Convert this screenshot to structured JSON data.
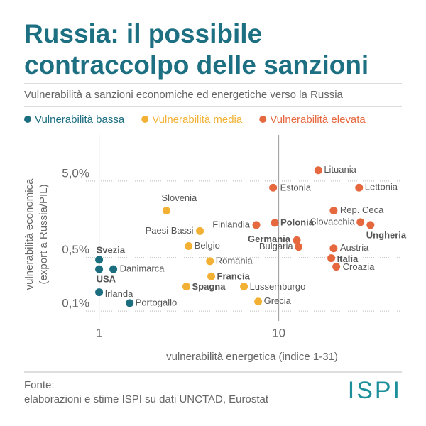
{
  "chart_data": {
    "type": "scatter",
    "title_lines": [
      "Russia: il possibile",
      "contraccolpo delle sanzioni"
    ],
    "subtitle": "Vulnerabilità a sanzioni economiche ed energetiche verso la Russia",
    "x_label": "vulnerabilità energetica (indice 1-31)",
    "y_label_lines": [
      "vulnerabilità economica",
      "(export a Russia/PIL)"
    ],
    "source_lines": [
      "Fonte:",
      "elaborazioni e stime ISPI su dati UNCTAD, Eurostat"
    ],
    "logo": "ISPI",
    "x_log": true,
    "y_log": true,
    "grid": true,
    "xlim": [
      0.73,
      48
    ],
    "ylim": [
      0.06,
      20
    ],
    "xticks": [
      1,
      10
    ],
    "yticks": [
      {
        "value": 0.1,
        "label": "0,1%"
      },
      {
        "value": 0.5,
        "label": "0,5%"
      },
      {
        "value": 5,
        "label": "5,0%"
      }
    ],
    "series": [
      {
        "name": "Vulnerabilità bassa",
        "color": "#1b6d80",
        "labels": [
          "Svezia",
          "USA",
          "Danimarca",
          "Irlanda",
          "Portogallo"
        ],
        "bold": [
          true,
          true,
          false,
          false,
          false
        ],
        "x": [
          1,
          1,
          1.2,
          1,
          1.48
        ],
        "values": [
          0.468,
          0.352,
          0.352,
          0.176,
          0.127
        ]
      },
      {
        "name": "Vulnerabilità media",
        "color": "#f2b134",
        "labels": [
          "Slovenia",
          "Paesi Bassi",
          "Belgio",
          "Romania",
          "Francia",
          "Spagna",
          "Lussemburgo",
          "Grecia"
        ],
        "bold": [
          false,
          false,
          false,
          false,
          true,
          true,
          false,
          false
        ],
        "x": [
          2.37,
          3.64,
          3.15,
          4.14,
          4.21,
          3.06,
          6.4,
          7.68
        ],
        "values": [
          2.05,
          1.11,
          0.707,
          0.448,
          0.284,
          0.209,
          0.209,
          0.133
        ]
      },
      {
        "name": "Vulnerabilità elevata",
        "color": "#e5683e",
        "labels": [
          "Lituania",
          "Estonia",
          "Lettonia",
          "Rep. Ceca",
          "Finlandia",
          "Polonia",
          "Slovacchia",
          "Ungheria",
          "Germania",
          "Bulgaria",
          "Austria",
          "Italia",
          "Croazia"
        ],
        "bold": [
          false,
          false,
          false,
          false,
          false,
          true,
          false,
          true,
          true,
          false,
          false,
          true,
          false
        ],
        "x": [
          16.6,
          9.3,
          28,
          20.2,
          7.5,
          9.5,
          28.5,
          32.4,
          12.6,
          12.9,
          20.2,
          19.6,
          20.9
        ],
        "values": [
          6.92,
          4.1,
          4.1,
          2.05,
          1.33,
          1.42,
          1.45,
          1.33,
          0.84,
          0.69,
          0.66,
          0.49,
          0.38
        ]
      }
    ]
  }
}
